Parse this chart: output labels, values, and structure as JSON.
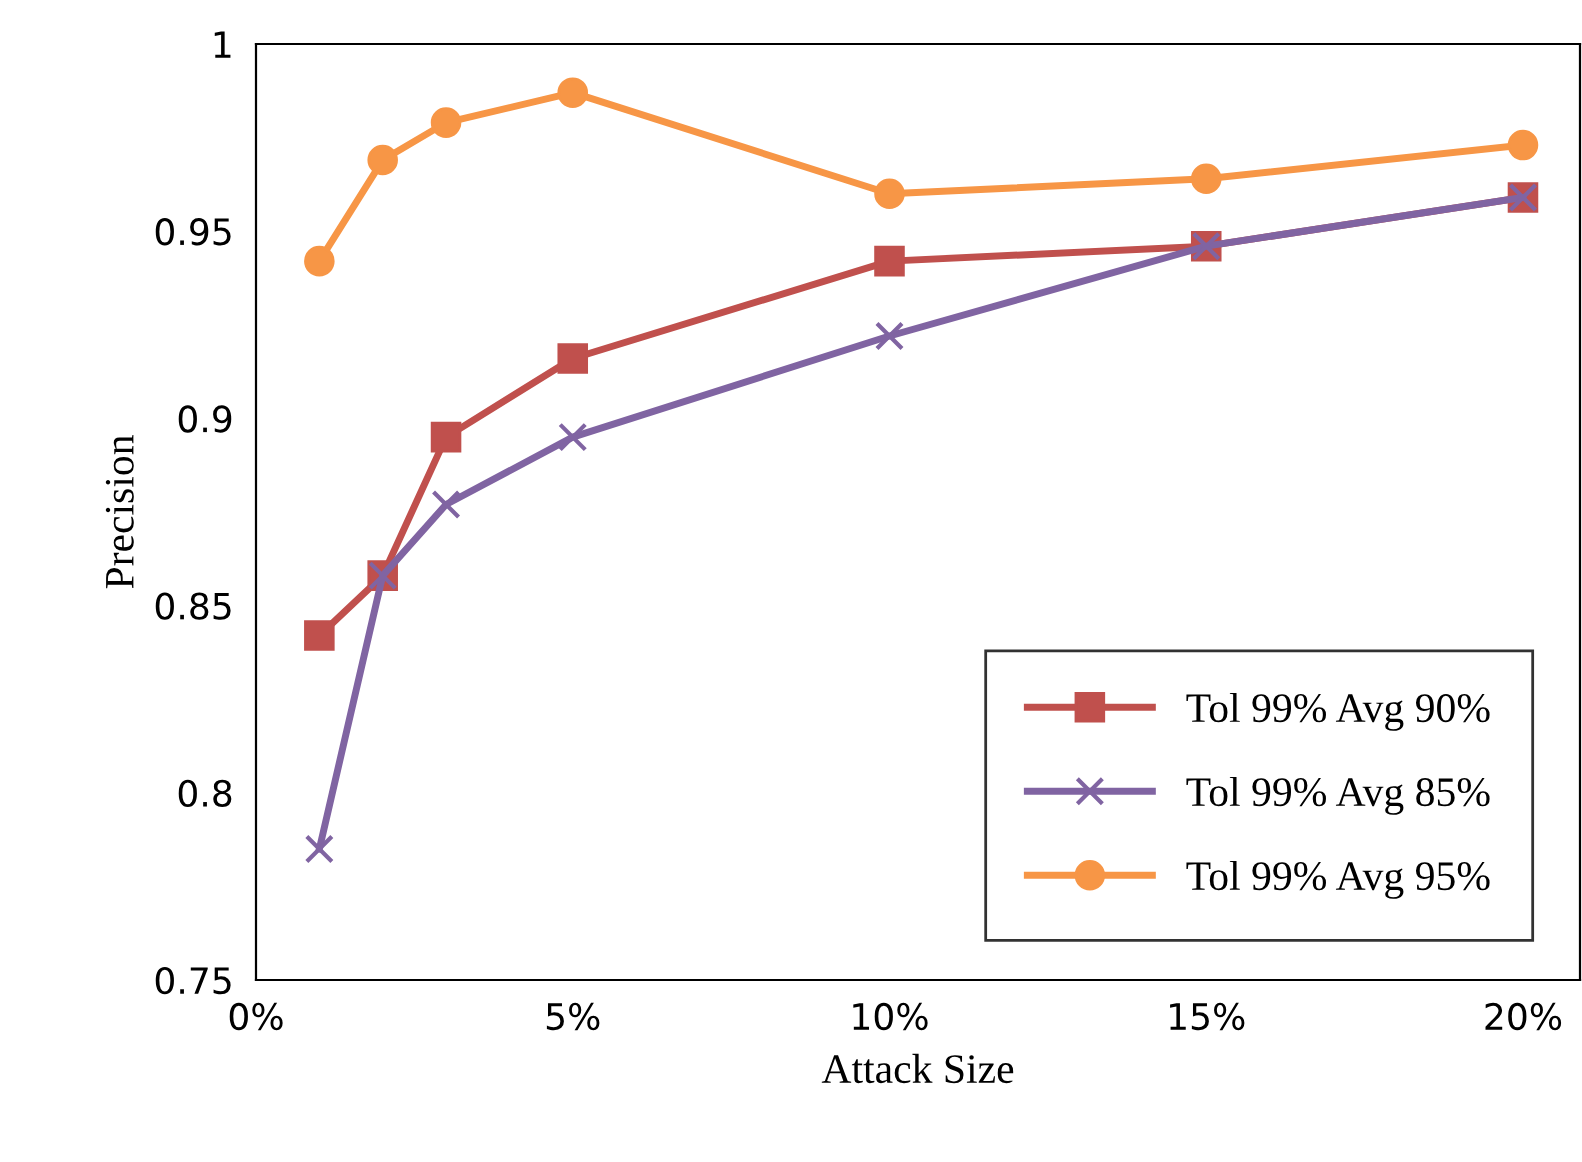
{
  "chart_data": {
    "type": "line",
    "xlabel": "Attack Size",
    "ylabel": "Precision",
    "x": [
      1,
      2,
      3,
      5,
      10,
      15,
      20
    ],
    "series": [
      {
        "name": "Tol 99% Avg 90%",
        "color": "#c0504d",
        "marker": "square",
        "values": [
          0.842,
          0.858,
          0.895,
          0.916,
          0.942,
          0.946,
          0.959
        ]
      },
      {
        "name": "Tol 99% Avg 85%",
        "color": "#8064a2",
        "marker": "cross",
        "values": [
          0.785,
          0.858,
          0.877,
          0.895,
          0.922,
          0.946,
          0.959
        ]
      },
      {
        "name": "Tol 99% Avg 95%",
        "color": "#f79646",
        "marker": "circle",
        "values": [
          0.942,
          0.969,
          0.979,
          0.987,
          0.96,
          0.964,
          0.973
        ]
      }
    ],
    "xlim": [
      0,
      20.9
    ],
    "xticks": [
      {
        "value": 0,
        "label": "0%"
      },
      {
        "value": 5,
        "label": "5%"
      },
      {
        "value": 10,
        "label": "10%"
      },
      {
        "value": 15,
        "label": "15%"
      },
      {
        "value": 20,
        "label": "20%"
      }
    ],
    "ylim": [
      0.75,
      1
    ],
    "yticks": [
      0.75,
      0.8,
      0.85,
      0.9,
      0.95,
      1
    ],
    "grid": false,
    "legend": "bottom right",
    "line_style": "solid"
  }
}
